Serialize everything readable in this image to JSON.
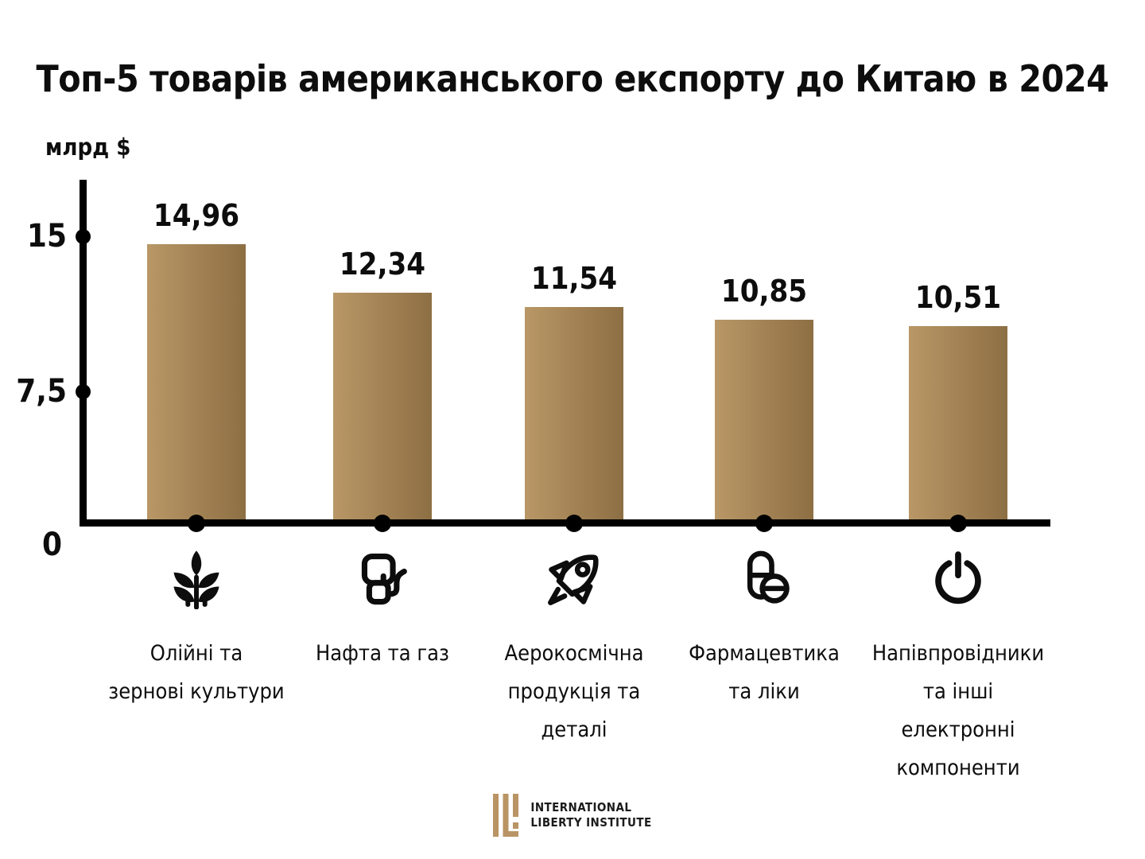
{
  "title": "Топ-5 товарів американського експорту до Китаю в 2024",
  "chart_data": {
    "type": "bar",
    "title": "Топ-5 товарів американського експорту до Китаю в 2024",
    "ylabel": "млрд $",
    "ylim": [
      0,
      15
    ],
    "yticks": [
      15,
      7.5,
      0
    ],
    "ytick_labels": [
      "15",
      "7,5",
      "0"
    ],
    "grid": false,
    "legend": "none",
    "categories": [
      "Олійні та зернові культури",
      "Нафта та газ",
      "Аерокосмічна продукція та деталі",
      "Фармацевтика та ліки",
      "Напівпровідники та інші електронні компоненти"
    ],
    "category_lines": [
      "Олійні та\nзернові культури",
      "Нафта та газ",
      "Аерокосмічна\nпродукція та\nдеталі",
      "Фармацевтика\nта ліки",
      "Напівпровідники\nта інші\nелектронні\nкомпоненти"
    ],
    "values": [
      14.96,
      12.34,
      11.54,
      10.85,
      10.51
    ],
    "display_values": [
      "14,96",
      "12,34",
      "11,54",
      "10,85",
      "10,51"
    ],
    "icons": [
      "wheat-icon",
      "fuel-pump-icon",
      "rocket-icon",
      "pills-icon",
      "power-icon"
    ],
    "bar_color_left": "#b99766",
    "bar_color_right": "#8d6f44",
    "axis_color": "#000000",
    "text_color": "#0d0d0d"
  },
  "footer": {
    "org_line1": "International",
    "org_line2": "Liberty Institute",
    "logo_gold": "#b99464"
  }
}
